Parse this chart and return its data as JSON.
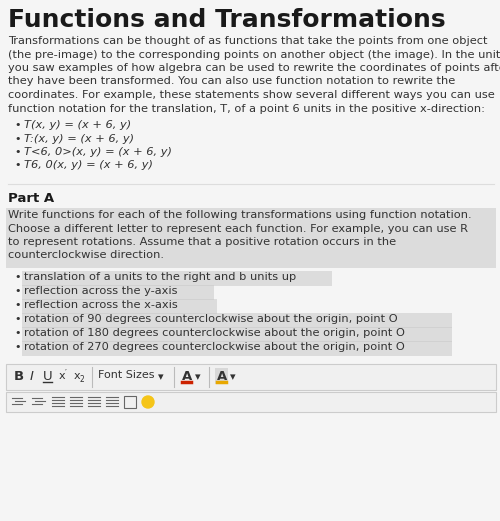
{
  "title": "Functions and Transformations",
  "bg_color": "#f5f5f5",
  "page_bg": "#ffffff",
  "intro_text_lines": [
    "Transformations can be thought of as functions that take the points from one object",
    "(the pre-image) to the corresponding points on another object (the image). In the unit,",
    "you saw examples of how algebra can be used to rewrite the coordinates of points after",
    "they have been transformed. You can also use function notation to rewrite the",
    "coordinates. For example, these statements show several different ways you can use",
    "function notation for the translation, T, of a point 6 units in the positive x-direction:"
  ],
  "bullet_items_top": [
    "T(x, y) = (x + 6, y)",
    "T:(x, y) = (x + 6, y)",
    "T<6, 0>(x, y) = (x + 6, y)",
    "T6, 0(x, y) = (x + 6, y)"
  ],
  "part_a_label": "Part A",
  "highlighted_text_lines": [
    "Write functions for each of the following transformations using function notation.",
    "Choose a different letter to represent each function. For example, you can use R",
    "to represent rotations. Assume that a positive rotation occurs in the",
    "counterclockwise direction."
  ],
  "bullet_items_bottom": [
    "translation of a units to the right and b units up",
    "reflection across the y-axis",
    "reflection across the x-axis",
    "rotation of 90 degrees counterclockwise about the origin, point O",
    "rotation of 180 degrees counterclockwise about the origin, point O",
    "rotation of 270 degrees counterclockwise about the origin, point O"
  ],
  "highlight_color": "#c8c8c8",
  "bullet_highlight_indices": [
    0,
    2,
    3,
    4,
    5,
    6
  ],
  "toolbar_bg": "#f0f0f0",
  "toolbar_border": "#cccccc",
  "text_color": "#333333",
  "title_color": "#1a1a1a",
  "separator_color": "#dddddd",
  "title_fontsize": 18,
  "body_fontsize": 8.2,
  "bullet_fontsize": 8.2,
  "part_a_fontsize": 9.5
}
